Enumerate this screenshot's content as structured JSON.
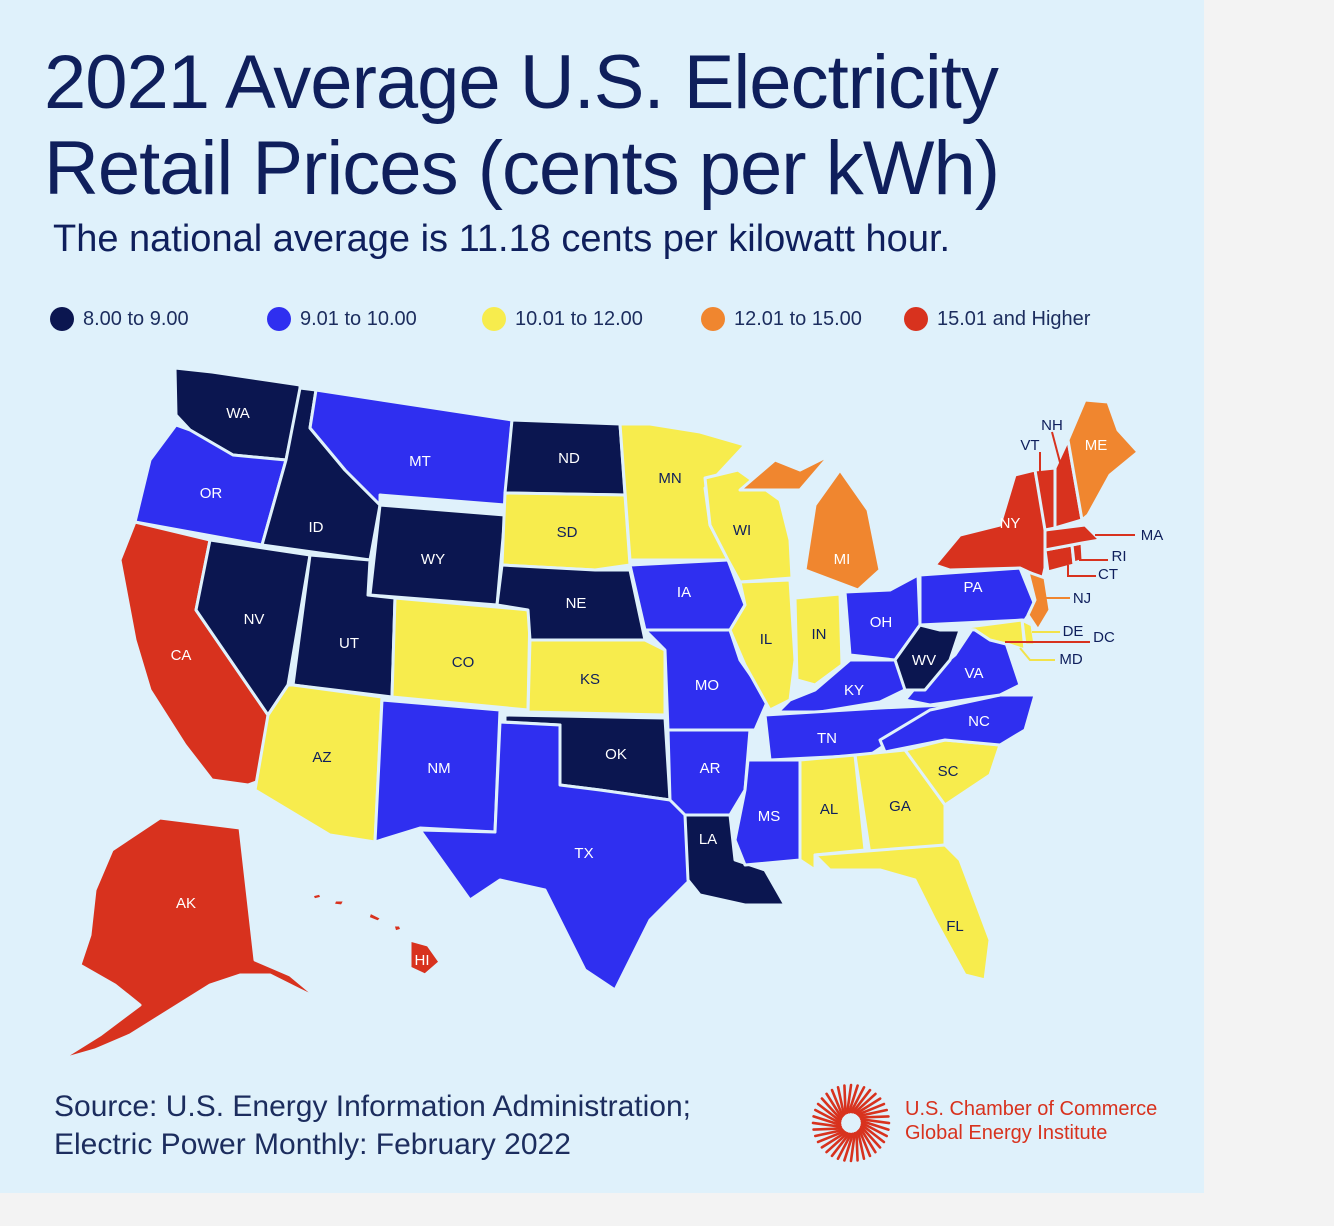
{
  "title_line1": "2021 Average U.S. Electricity",
  "title_line2": "Retail Prices (cents per kWh)",
  "subtitle": "The national average is 11.18 cents per kilowatt hour.",
  "legend": [
    {
      "label": "8.00 to 9.00",
      "color": "#0b1650"
    },
    {
      "label": "9.01 to 10.00",
      "color": "#2f2ff0"
    },
    {
      "label": "10.01 to 12.00",
      "color": "#f7ec4d"
    },
    {
      "label": "12.01 to 15.00",
      "color": "#f0862f"
    },
    {
      "label": "15.01 and Higher",
      "color": "#d8321e"
    }
  ],
  "states": {
    "WA": {
      "label": "WA",
      "range": "8.00 to 9.00"
    },
    "OR": {
      "label": "OR",
      "range": "9.01 to 10.00"
    },
    "CA": {
      "label": "CA",
      "range": "15.01 and Higher"
    },
    "ID": {
      "label": "ID",
      "range": "8.00 to 9.00"
    },
    "NV": {
      "label": "NV",
      "range": "8.00 to 9.00"
    },
    "MT": {
      "label": "MT",
      "range": "9.01 to 10.00"
    },
    "WY": {
      "label": "WY",
      "range": "8.00 to 9.00"
    },
    "UT": {
      "label": "UT",
      "range": "8.00 to 9.00"
    },
    "AZ": {
      "label": "AZ",
      "range": "10.01 to 12.00"
    },
    "CO": {
      "label": "CO",
      "range": "10.01 to 12.00"
    },
    "NM": {
      "label": "NM",
      "range": "9.01 to 10.00"
    },
    "ND": {
      "label": "ND",
      "range": "8.00 to 9.00"
    },
    "SD": {
      "label": "SD",
      "range": "10.01 to 12.00"
    },
    "NE": {
      "label": "NE",
      "range": "8.00 to 9.00"
    },
    "KS": {
      "label": "KS",
      "range": "10.01 to 12.00"
    },
    "OK": {
      "label": "OK",
      "range": "8.00 to 9.00"
    },
    "TX": {
      "label": "TX",
      "range": "9.01 to 10.00"
    },
    "MN": {
      "label": "MN",
      "range": "10.01 to 12.00"
    },
    "IA": {
      "label": "IA",
      "range": "9.01 to 10.00"
    },
    "MO": {
      "label": "MO",
      "range": "9.01 to 10.00"
    },
    "AR": {
      "label": "AR",
      "range": "9.01 to 10.00"
    },
    "LA": {
      "label": "LA",
      "range": "8.00 to 9.00"
    },
    "WI": {
      "label": "WI",
      "range": "10.01 to 12.00"
    },
    "IL": {
      "label": "IL",
      "range": "10.01 to 12.00"
    },
    "MI": {
      "label": "MI",
      "range": "12.01 to 15.00"
    },
    "IN": {
      "label": "IN",
      "range": "10.01 to 12.00"
    },
    "OH": {
      "label": "OH",
      "range": "9.01 to 10.00"
    },
    "KY": {
      "label": "KY",
      "range": "9.01 to 10.00"
    },
    "TN": {
      "label": "TN",
      "range": "9.01 to 10.00"
    },
    "MS": {
      "label": "MS",
      "range": "9.01 to 10.00"
    },
    "AL": {
      "label": "AL",
      "range": "10.01 to 12.00"
    },
    "GA": {
      "label": "GA",
      "range": "10.01 to 12.00"
    },
    "FL": {
      "label": "FL",
      "range": "10.01 to 12.00"
    },
    "SC": {
      "label": "SC",
      "range": "10.01 to 12.00"
    },
    "NC": {
      "label": "NC",
      "range": "9.01 to 10.00"
    },
    "VA": {
      "label": "VA",
      "range": "9.01 to 10.00"
    },
    "WV": {
      "label": "WV",
      "range": "8.00 to 9.00"
    },
    "PA": {
      "label": "PA",
      "range": "9.01 to 10.00"
    },
    "NY": {
      "label": "NY",
      "range": "15.01 and Higher"
    },
    "NJ": {
      "label": "NJ",
      "range": "12.01 to 15.00"
    },
    "DE": {
      "label": "DE",
      "range": "10.01 to 12.00"
    },
    "DC": {
      "label": "DC",
      "range": "12.01 to 15.00"
    },
    "MD": {
      "label": "MD",
      "range": "10.01 to 12.00"
    },
    "CT": {
      "label": "CT",
      "range": "15.01 and Higher"
    },
    "RI": {
      "label": "RI",
      "range": "15.01 and Higher"
    },
    "MA": {
      "label": "MA",
      "range": "15.01 and Higher"
    },
    "VT": {
      "label": "VT",
      "range": "15.01 and Higher"
    },
    "NH": {
      "label": "NH",
      "range": "15.01 and Higher"
    },
    "ME": {
      "label": "ME",
      "range": "12.01 to 15.00"
    },
    "AK": {
      "label": "AK",
      "range": "15.01 and Higher"
    },
    "HI": {
      "label": "HI",
      "range": "15.01 and Higher"
    }
  },
  "source_line1": "Source: U.S. Energy Information Administration;",
  "source_line2": "Electric Power Monthly: February 2022",
  "org_line1": "U.S. Chamber of Commerce",
  "org_line2": "Global Energy Institute",
  "logo_icon": "sunburst-logo-icon",
  "logo_color": "#d8321e"
}
